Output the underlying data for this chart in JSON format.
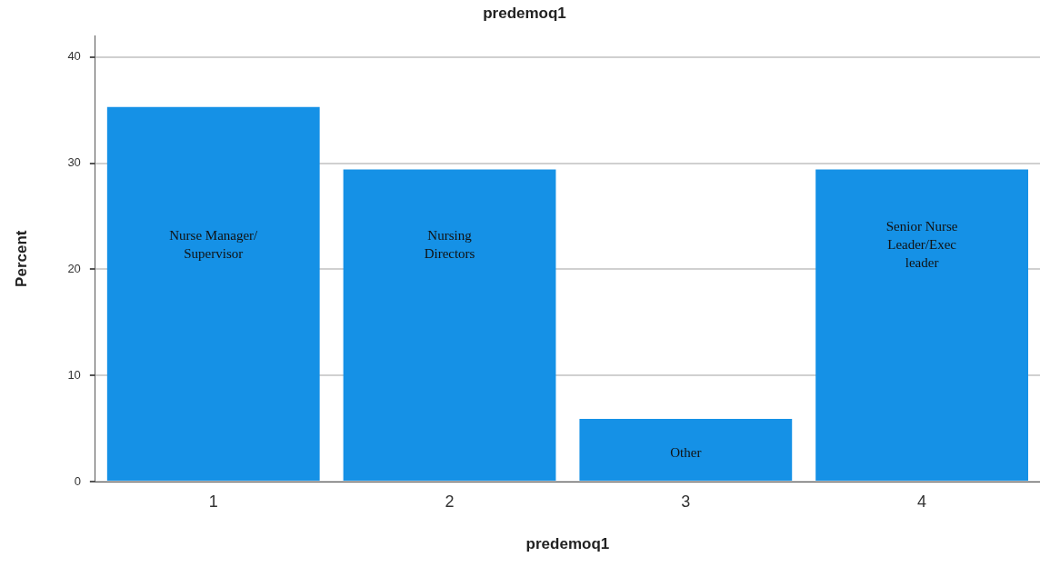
{
  "chart_data": {
    "type": "bar",
    "title": "predemoq1",
    "xlabel": "predemoq1",
    "ylabel": "Percent",
    "categories": [
      "1",
      "2",
      "3",
      "4"
    ],
    "values": [
      35.3,
      29.4,
      5.9,
      29.4
    ],
    "color": "#1591e6",
    "ylim": [
      0,
      42
    ],
    "yticks": [
      0,
      10,
      20,
      30,
      40
    ],
    "grid": "y",
    "legend": false,
    "annotations": [
      "Nurse Manager/\nSupervisor",
      "Nursing\nDirectors",
      "Other",
      "Senior Nurse\nLeader/Exec\nleader"
    ]
  }
}
